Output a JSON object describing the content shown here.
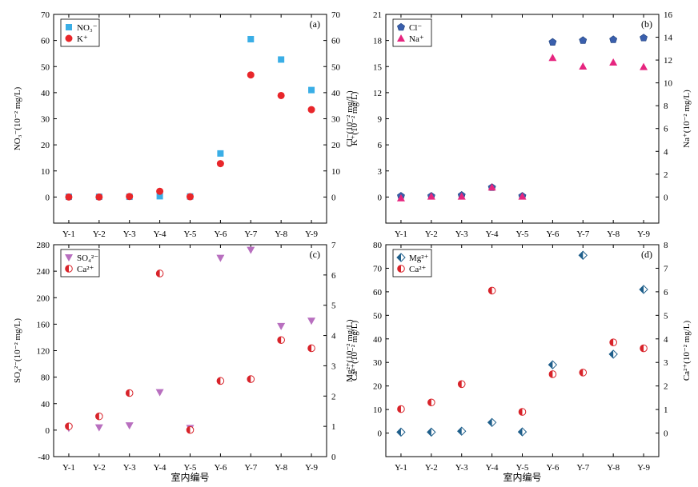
{
  "xaxis_title": "室内编号",
  "chart_data": [
    {
      "type": "scatter",
      "panel_label": "(a)",
      "categories": [
        "Y-1",
        "Y-2",
        "Y-3",
        "Y-4",
        "Y-5",
        "Y-6",
        "Y-7",
        "Y-8",
        "Y-9"
      ],
      "ylabel_left": "NO₃⁻(10⁻² mg/L)",
      "ylabel_right": "K⁺(10⁻² mg/L)",
      "ylim_left": [
        -10,
        70
      ],
      "ylim_right": [
        -10,
        70
      ],
      "yticks_left": [
        0,
        10,
        20,
        30,
        40,
        50,
        60,
        70
      ],
      "yticks_right": [
        0,
        10,
        20,
        30,
        40,
        50,
        60,
        70
      ],
      "legend_position": "top-left",
      "series": [
        {
          "name": "NO₃⁻",
          "axis": "left",
          "marker": "square",
          "color": "#3aaee6",
          "values": [
            0.1,
            0.1,
            0.1,
            0.3,
            0.2,
            16.7,
            60.5,
            52.7,
            41.0
          ]
        },
        {
          "name": "K⁺",
          "axis": "right",
          "marker": "circle",
          "color": "#e8262a",
          "values": [
            0,
            0,
            0.2,
            2.2,
            0.1,
            12.8,
            46.8,
            38.9,
            33.5
          ]
        }
      ]
    },
    {
      "type": "scatter",
      "panel_label": "(b)",
      "categories": [
        "Y-1",
        "Y-2",
        "Y-3",
        "Y-4",
        "Y-5",
        "Y-6",
        "Y-7",
        "Y-8",
        "Y-9"
      ],
      "ylabel_left": "Cl⁻(10⁻² mg/L)",
      "ylabel_right": "Na⁺(10⁻² mg/L)",
      "ylim_left": [
        -3,
        21
      ],
      "ylim_right": [
        -2.286,
        16
      ],
      "yticks_left": [
        0,
        3,
        6,
        9,
        12,
        15,
        18,
        21
      ],
      "yticks_right": [
        0,
        2,
        4,
        6,
        8,
        10,
        12,
        14,
        16
      ],
      "legend_position": "top-left",
      "series": [
        {
          "name": "Cl⁻",
          "axis": "left",
          "marker": "pentagon",
          "color": "#3a5fad",
          "values": [
            0.1,
            0.1,
            0.2,
            1.1,
            0.1,
            17.8,
            18.0,
            18.1,
            18.3
          ]
        },
        {
          "name": "Na⁺",
          "axis": "right",
          "marker": "triangle-up",
          "color": "#e6257f",
          "values": [
            -0.1,
            0.05,
            0.05,
            0.85,
            0.05,
            12.2,
            11.45,
            11.8,
            11.4
          ]
        }
      ]
    },
    {
      "type": "scatter",
      "panel_label": "(c)",
      "categories": [
        "Y-1",
        "Y-2",
        "Y-3",
        "Y-4",
        "Y-5",
        "Y-6",
        "Y-7",
        "Y-8",
        "Y-9"
      ],
      "ylabel_left": "SO₄²⁻(10⁻² mg/L)",
      "ylabel_right": "Ca²⁺(10⁻² mg/L)",
      "ylim_left": [
        -40,
        280
      ],
      "ylim_right": [
        0,
        7
      ],
      "yticks_left": [
        -40,
        0,
        40,
        80,
        120,
        160,
        200,
        240,
        280
      ],
      "yticks_right": [
        0,
        1,
        2,
        3,
        4,
        5,
        6,
        7
      ],
      "legend_position": "top-left",
      "series": [
        {
          "name": "SO₄²⁻",
          "axis": "left",
          "marker": "triangle-down",
          "color": "#b86fbf",
          "values": [
            3,
            4,
            7,
            57,
            3,
            260,
            272,
            157,
            165
          ]
        },
        {
          "name": "Ca²⁺",
          "axis": "right",
          "marker": "half-circle",
          "color": "#d8232a",
          "values": [
            1.0,
            1.33,
            2.1,
            6.05,
            0.88,
            2.5,
            2.56,
            3.85,
            3.58
          ]
        }
      ]
    },
    {
      "type": "scatter",
      "panel_label": "(d)",
      "categories": [
        "Y-1",
        "Y-2",
        "Y-3",
        "Y-4",
        "Y-5",
        "Y-6",
        "Y-7",
        "Y-8",
        "Y-9"
      ],
      "ylabel_left": "Mg²⁺(10⁻² mg/L)",
      "ylabel_right": "Ca²⁺(10⁻² mg/L)",
      "ylim_left": [
        -10,
        80
      ],
      "ylim_right": [
        -1,
        8
      ],
      "yticks_left": [
        0,
        10,
        20,
        30,
        40,
        50,
        60,
        70,
        80
      ],
      "yticks_right": [
        0,
        1,
        2,
        3,
        4,
        5,
        6,
        7,
        8
      ],
      "legend_position": "top-left",
      "series": [
        {
          "name": "Mg²⁺",
          "axis": "left",
          "marker": "half-diamond",
          "color": "#1f5f8b",
          "values": [
            0.4,
            0.4,
            0.8,
            4.5,
            0.5,
            29.0,
            75.5,
            33.5,
            61.0
          ]
        },
        {
          "name": "Ca²⁺",
          "axis": "right",
          "marker": "half-circle",
          "color": "#d8232a",
          "values": [
            1.02,
            1.3,
            2.08,
            6.05,
            0.9,
            2.5,
            2.57,
            3.85,
            3.6
          ]
        }
      ]
    }
  ]
}
